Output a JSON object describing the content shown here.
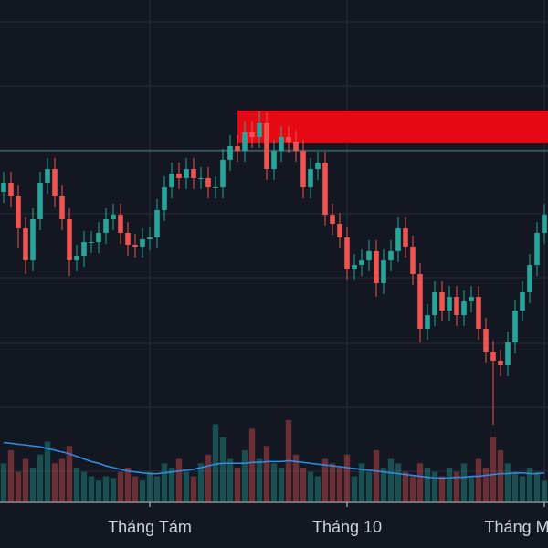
{
  "chart_data": {
    "type": "candlestick",
    "xlim": [
      -0.5,
      74.5
    ],
    "ylim": [
      0,
      550
    ],
    "vlim": [
      0,
      100
    ],
    "xticks": [
      {
        "value": 20,
        "label": "Tháng Tám"
      },
      {
        "value": 47,
        "label": "Tháng 10"
      },
      {
        "value": 74,
        "label": "Tháng Mười Hai"
      }
    ],
    "gridlines": [
      526,
      456,
      386,
      316,
      246,
      174,
      104,
      34
    ],
    "up_color": "#26a69a",
    "down_color": "#ef5350",
    "ma_color": "#2f8fe8",
    "level": {
      "value": 385,
      "color": "#3f7f7f"
    },
    "zone": {
      "start": 32,
      "low": 393,
      "high": 429,
      "color": "#e50914"
    },
    "open": [
      340,
      350,
      335,
      300,
      265,
      310,
      350,
      365,
      335,
      310,
      265,
      270,
      285,
      285,
      295,
      310,
      315,
      295,
      282,
      280,
      288,
      290,
      320,
      345,
      360,
      355,
      365,
      355,
      355,
      345,
      345,
      375,
      390,
      385,
      405,
      400,
      415,
      365,
      385,
      400,
      395,
      385,
      345,
      365,
      372,
      315,
      305,
      290,
      255,
      260,
      265,
      275,
      240,
      265,
      275,
      300,
      280,
      250,
      190,
      205,
      230,
      210,
      225,
      205,
      220,
      225,
      190,
      165,
      155,
      150,
      175,
      210,
      230,
      260,
      295
    ],
    "high": [
      362,
      362,
      347,
      312,
      322,
      362,
      377,
      377,
      347,
      322,
      282,
      297,
      297,
      307,
      322,
      327,
      327,
      307,
      294,
      300,
      302,
      332,
      357,
      372,
      372,
      377,
      377,
      367,
      367,
      357,
      387,
      402,
      402,
      417,
      417,
      428,
      427,
      397,
      412,
      412,
      407,
      397,
      377,
      384,
      384,
      327,
      317,
      302,
      272,
      277,
      287,
      287,
      277,
      287,
      312,
      312,
      292,
      262,
      217,
      242,
      242,
      237,
      237,
      232,
      237,
      237,
      202,
      177,
      167,
      187,
      222,
      242,
      272,
      307,
      327
    ],
    "low": [
      328,
      323,
      278,
      250,
      253,
      298,
      338,
      323,
      298,
      248,
      253,
      258,
      273,
      273,
      283,
      298,
      283,
      270,
      268,
      268,
      276,
      278,
      308,
      333,
      343,
      343,
      343,
      343,
      333,
      333,
      333,
      363,
      373,
      373,
      388,
      388,
      353,
      353,
      373,
      383,
      373,
      333,
      333,
      353,
      303,
      293,
      278,
      243,
      243,
      248,
      253,
      225,
      228,
      253,
      263,
      268,
      238,
      175,
      178,
      193,
      198,
      198,
      193,
      193,
      208,
      178,
      153,
      85,
      138,
      138,
      163,
      198,
      218,
      248,
      283
    ],
    "close": [
      350,
      335,
      300,
      265,
      310,
      350,
      365,
      335,
      310,
      265,
      270,
      285,
      285,
      295,
      310,
      315,
      295,
      282,
      280,
      288,
      290,
      320,
      345,
      360,
      355,
      365,
      355,
      355,
      345,
      345,
      375,
      390,
      385,
      405,
      400,
      415,
      365,
      385,
      400,
      395,
      385,
      345,
      365,
      372,
      315,
      305,
      290,
      255,
      260,
      265,
      275,
      240,
      265,
      275,
      300,
      280,
      250,
      190,
      205,
      230,
      210,
      225,
      205,
      220,
      225,
      190,
      165,
      155,
      150,
      175,
      210,
      230,
      260,
      295,
      315
    ],
    "volume": [
      45,
      60,
      35,
      50,
      40,
      55,
      70,
      45,
      50,
      65,
      40,
      35,
      30,
      25,
      30,
      28,
      35,
      40,
      30,
      25,
      35,
      30,
      45,
      40,
      50,
      35,
      30,
      45,
      55,
      90,
      75,
      50,
      40,
      60,
      85,
      50,
      65,
      45,
      40,
      95,
      55,
      40,
      35,
      30,
      50,
      45,
      40,
      55,
      30,
      45,
      35,
      60,
      40,
      50,
      45,
      35,
      30,
      45,
      40,
      35,
      30,
      40,
      35,
      45,
      30,
      50,
      40,
      75,
      60,
      45,
      35,
      30,
      40,
      35,
      25
    ],
    "volume_ma": [
      69,
      68,
      67,
      66,
      65,
      64,
      62,
      60,
      58,
      56,
      53,
      50,
      47,
      45,
      42,
      40,
      38,
      36,
      35,
      34,
      33,
      33,
      34,
      35,
      36,
      37,
      38,
      40,
      42,
      44,
      45,
      45,
      45,
      45,
      46,
      46,
      47,
      47,
      47,
      48,
      47,
      46,
      45,
      44,
      43,
      42,
      41,
      40,
      39,
      38,
      37,
      36,
      35,
      34,
      33,
      32,
      31,
      30,
      29,
      28,
      28,
      28,
      29,
      29,
      30,
      30,
      31,
      32,
      33,
      33,
      34,
      34,
      33,
      33,
      34
    ]
  }
}
